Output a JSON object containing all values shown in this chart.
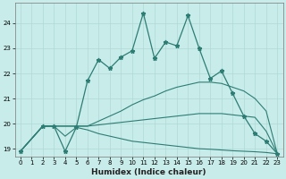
{
  "xlabel": "Humidex (Indice chaleur)",
  "background_color": "#c8ecea",
  "line_color": "#2d7d74",
  "grid_color": "#b0d8d4",
  "xlim": [
    -0.5,
    23.5
  ],
  "ylim": [
    18.7,
    24.8
  ],
  "yticks": [
    19,
    20,
    21,
    22,
    23,
    24
  ],
  "xticks": [
    0,
    1,
    2,
    3,
    4,
    5,
    6,
    7,
    8,
    9,
    10,
    11,
    12,
    13,
    14,
    15,
    16,
    17,
    18,
    19,
    20,
    21,
    22,
    23
  ],
  "series": {
    "main_x": [
      0,
      2,
      3,
      4,
      5,
      6,
      7,
      8,
      9,
      10,
      11,
      12,
      13,
      14,
      15,
      16,
      17,
      18,
      19,
      20,
      21,
      22,
      23
    ],
    "main_y": [
      18.9,
      19.9,
      19.9,
      18.9,
      19.85,
      21.7,
      22.55,
      22.2,
      22.65,
      22.9,
      24.4,
      22.6,
      23.25,
      23.1,
      24.3,
      23.0,
      21.8,
      22.1,
      21.2,
      20.3,
      19.6,
      19.3,
      18.8
    ],
    "upper_x": [
      0,
      2,
      3,
      4,
      5,
      6,
      7,
      8,
      9,
      10,
      11,
      12,
      13,
      14,
      15,
      16,
      17,
      18,
      19,
      20,
      21,
      22,
      23
    ],
    "upper_y": [
      18.9,
      19.9,
      19.9,
      19.9,
      19.9,
      19.9,
      20.1,
      20.3,
      20.5,
      20.75,
      20.95,
      21.1,
      21.3,
      21.45,
      21.55,
      21.65,
      21.65,
      21.6,
      21.45,
      21.3,
      21.0,
      20.5,
      18.8
    ],
    "mid_x": [
      0,
      2,
      3,
      4,
      5,
      6,
      7,
      8,
      9,
      10,
      11,
      12,
      13,
      14,
      15,
      16,
      17,
      18,
      19,
      20,
      21,
      22,
      23
    ],
    "mid_y": [
      18.9,
      19.9,
      19.9,
      19.9,
      19.9,
      19.9,
      19.95,
      20.0,
      20.05,
      20.1,
      20.15,
      20.2,
      20.25,
      20.3,
      20.35,
      20.4,
      20.4,
      20.4,
      20.35,
      20.3,
      20.25,
      19.7,
      18.8
    ],
    "lower_x": [
      0,
      2,
      3,
      4,
      5,
      6,
      7,
      8,
      9,
      10,
      11,
      12,
      13,
      14,
      15,
      16,
      17,
      18,
      19,
      20,
      21,
      22,
      23
    ],
    "lower_y": [
      18.9,
      19.9,
      19.9,
      19.5,
      19.85,
      19.75,
      19.6,
      19.5,
      19.4,
      19.3,
      19.25,
      19.2,
      19.15,
      19.1,
      19.05,
      19.0,
      18.98,
      18.95,
      18.92,
      18.9,
      18.88,
      18.85,
      18.8
    ]
  }
}
